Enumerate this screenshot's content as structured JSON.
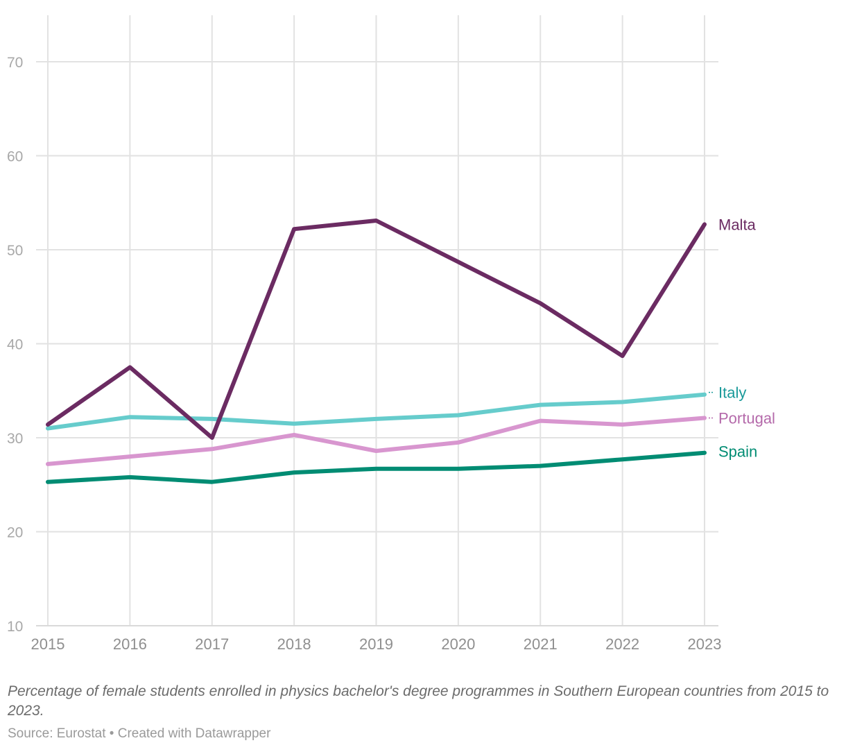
{
  "chart_data": {
    "type": "line",
    "title": "",
    "xlabel": "",
    "ylabel": "",
    "x": [
      2015,
      2016,
      2017,
      2018,
      2019,
      2020,
      2021,
      2022,
      2023
    ],
    "x_tick_labels": [
      "2015",
      "2016",
      "2017",
      "2018",
      "2019",
      "2020",
      "2021",
      "2022",
      "2023"
    ],
    "y_ticks": [
      10,
      20,
      30,
      40,
      50,
      60,
      70
    ],
    "y_tick_labels": [
      "10",
      "20",
      "30",
      "40",
      "50",
      "60",
      "70"
    ],
    "ylim": [
      10,
      75
    ],
    "grid": true,
    "series": [
      {
        "name": "Malta",
        "color": "#6b2b62",
        "values": [
          31.4,
          37.5,
          30.0,
          52.2,
          53.1,
          48.7,
          44.3,
          38.7,
          52.7
        ]
      },
      {
        "name": "Italy",
        "color": "#66cccc",
        "values": [
          31.0,
          32.2,
          32.0,
          31.5,
          32.0,
          32.4,
          33.5,
          33.8,
          34.6
        ]
      },
      {
        "name": "Portugal",
        "color": "#d896cf",
        "values": [
          27.2,
          28.0,
          28.8,
          30.3,
          28.6,
          29.5,
          31.8,
          31.4,
          32.1
        ]
      },
      {
        "name": "Spain",
        "color": "#008c73",
        "values": [
          25.3,
          25.8,
          25.3,
          26.3,
          26.7,
          26.7,
          27.0,
          27.7,
          28.4
        ]
      }
    ],
    "label_colors": {
      "Malta": "#6b2b62",
      "Italy": "#1a9a9a",
      "Portugal": "#b469aa",
      "Spain": "#008c73"
    }
  },
  "caption": "Percentage of female students enrolled in physics bachelor's degree programmes in Southern European countries from 2015 to 2023.",
  "source": "Source: Eurostat • Created with Datawrapper"
}
